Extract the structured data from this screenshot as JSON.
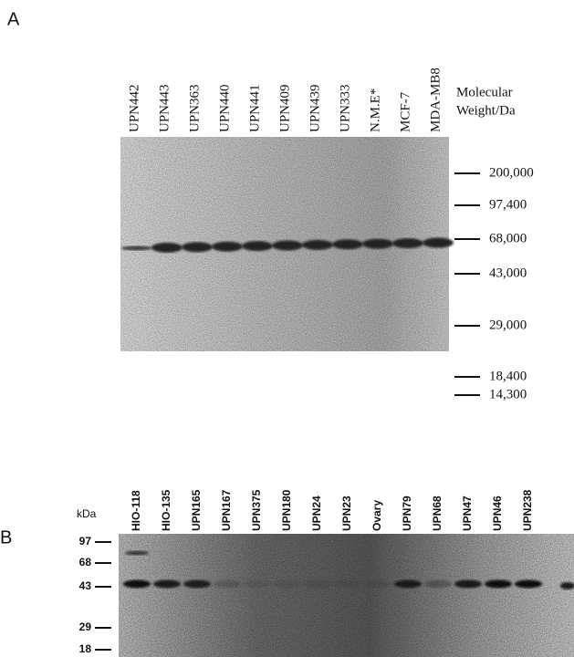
{
  "panel_a": {
    "label": "A",
    "lanes": [
      "UPN442",
      "UPN443",
      "UPN363",
      "UPN440",
      "UPN441",
      "UPN409",
      "UPN439",
      "UPN333",
      "N.M.E*",
      "MCF-7",
      "MDA-MB8"
    ],
    "mw_title": [
      "Molecular",
      "Weight/Da"
    ],
    "markers": [
      "200,000",
      "97,400",
      "68,000",
      "43,000",
      "29,000",
      "18,400",
      "14,300"
    ]
  },
  "panel_b": {
    "label": "B",
    "unit": "kDa",
    "lanes": [
      "HIO-118",
      "HIO-135",
      "UPN165",
      "UPN167",
      "UPN375",
      "UPN180",
      "UPN24",
      "UPN23",
      "Ovary",
      "UPN79",
      "UPN68",
      "UPN47",
      "UPN46",
      "UPN238"
    ],
    "markers": [
      "97",
      "68",
      "43",
      "29",
      "18"
    ]
  }
}
